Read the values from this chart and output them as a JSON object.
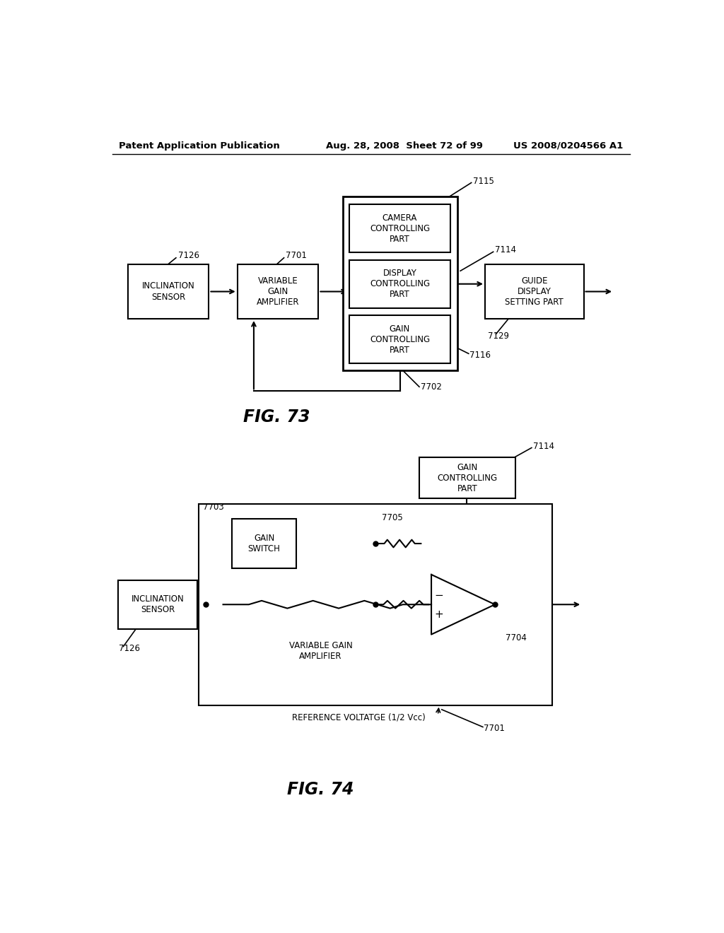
{
  "bg_color": "#ffffff",
  "header_left": "Patent Application Publication",
  "header_mid": "Aug. 28, 2008  Sheet 72 of 99",
  "header_right": "US 2008/0204566 A1",
  "fig73_label": "FIG. 73",
  "fig74_label": "FIG. 74",
  "line_color": "#000000",
  "text_color": "#000000"
}
